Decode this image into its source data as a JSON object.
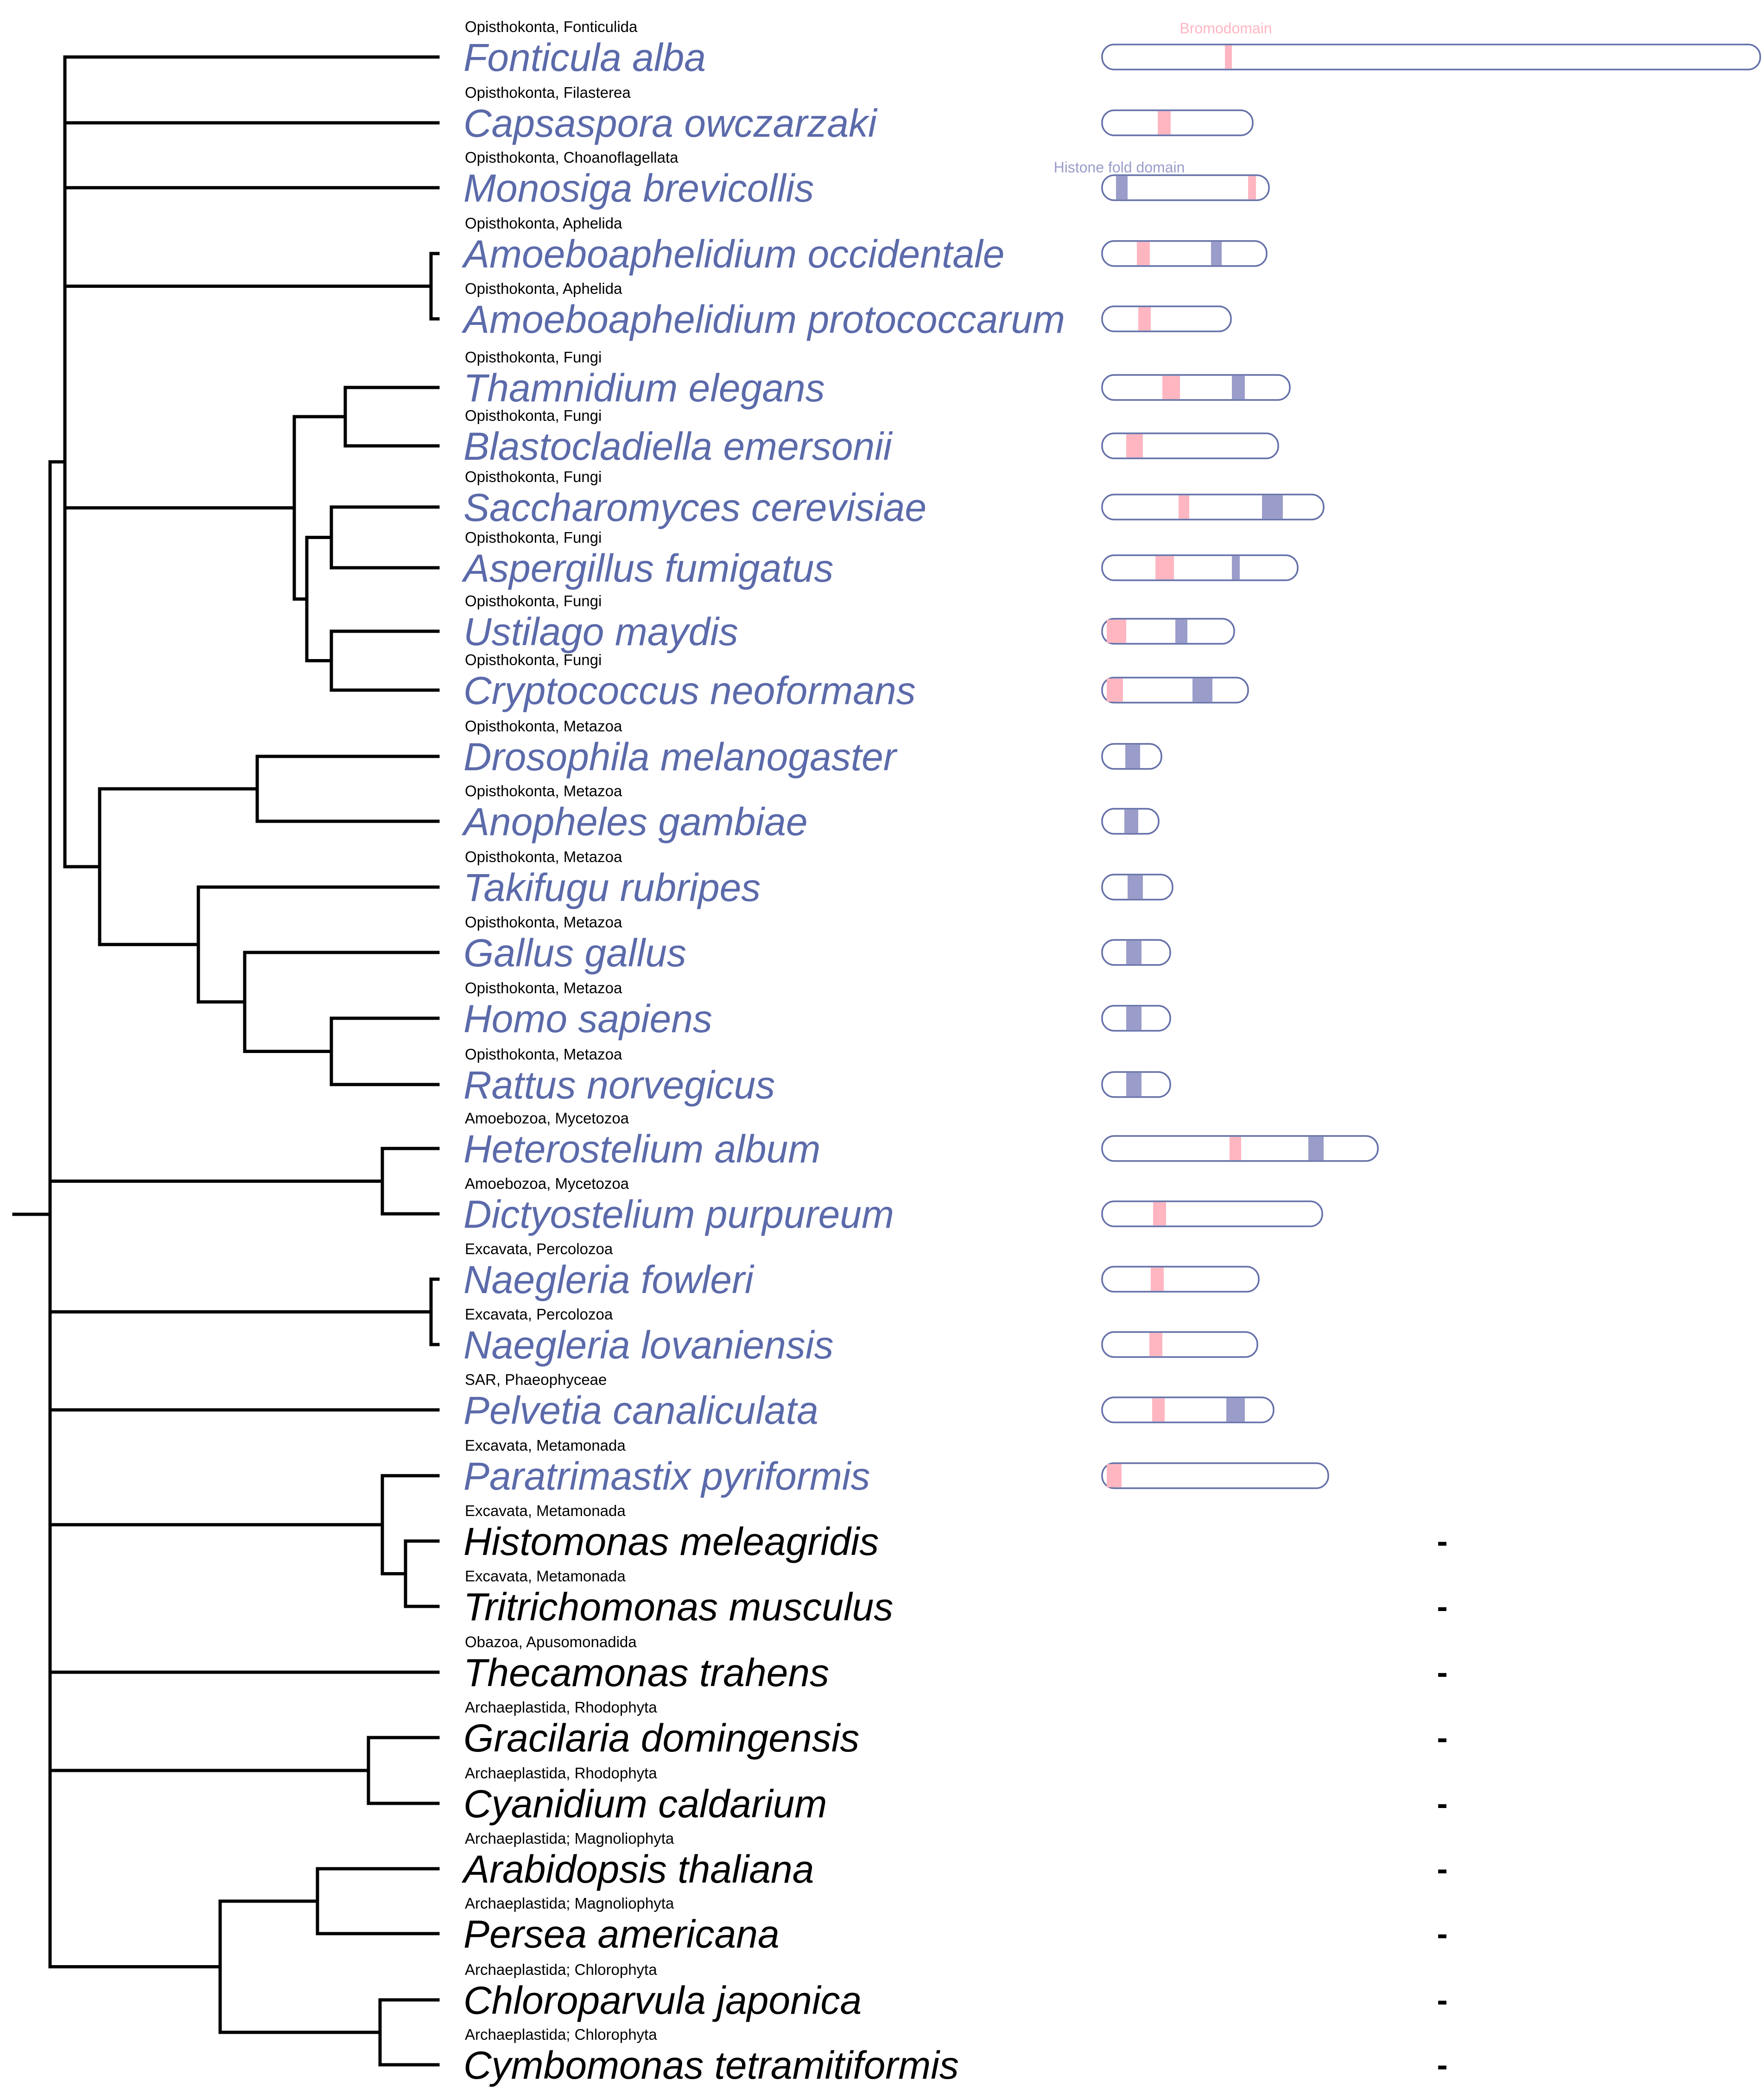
{
  "colors": {
    "has_protein": "#5b6aaa",
    "no_protein": "#000000",
    "bromodomain": "#ffb6c1",
    "histone_fold": "#9a9cc9",
    "protein_outline": "#6470a8"
  },
  "legend": {
    "bromodomain": "Bromodomain",
    "histone_fold": "Histone fold domain"
  },
  "no_hit_symbol": "-",
  "taxa": [
    {
      "name": "Fonticula alba",
      "group": "Opisthokonta, Fonticulida",
      "has_protein": true,
      "length": 1420,
      "domains": [
        {
          "type": "bromodomain",
          "start": 265,
          "end": 280
        }
      ]
    },
    {
      "name": "Capsaspora owczarzaki",
      "group": "Opisthokonta, Filasterea",
      "has_protein": true,
      "length": 325,
      "domains": [
        {
          "type": "bromodomain",
          "start": 120,
          "end": 148
        }
      ]
    },
    {
      "name": "Monosiga brevicollis",
      "group": "Opisthokonta, Choanoflagellata",
      "has_protein": true,
      "length": 360,
      "domains": [
        {
          "type": "histone_fold",
          "start": 30,
          "end": 55
        },
        {
          "type": "bromodomain",
          "start": 315,
          "end": 332
        }
      ]
    },
    {
      "name": "Amoeboaphelidium occidentale",
      "group": "Opisthokonta, Aphelida",
      "has_protein": true,
      "length": 355,
      "domains": [
        {
          "type": "bromodomain",
          "start": 75,
          "end": 103
        },
        {
          "type": "histone_fold",
          "start": 235,
          "end": 258
        }
      ]
    },
    {
      "name": "Amoeboaphelidium protococcarum",
      "group": "Opisthokonta, Aphelida",
      "has_protein": true,
      "length": 278,
      "domains": [
        {
          "type": "bromodomain",
          "start": 78,
          "end": 105
        }
      ]
    },
    {
      "name": "Thamnidium elegans",
      "group": "Opisthokonta, Fungi",
      "has_protein": true,
      "length": 405,
      "domains": [
        {
          "type": "bromodomain",
          "start": 130,
          "end": 168
        },
        {
          "type": "histone_fold",
          "start": 280,
          "end": 308
        }
      ]
    },
    {
      "name": "Blastocladiella emersonii",
      "group": "Opisthokonta, Fungi",
      "has_protein": true,
      "length": 380,
      "domains": [
        {
          "type": "bromodomain",
          "start": 52,
          "end": 88
        }
      ]
    },
    {
      "name": "Saccharomyces cerevisiae",
      "group": "Opisthokonta, Fungi",
      "has_protein": true,
      "length": 478,
      "domains": [
        {
          "type": "bromodomain",
          "start": 165,
          "end": 188
        },
        {
          "type": "histone_fold",
          "start": 345,
          "end": 390
        }
      ]
    },
    {
      "name": "Aspergillus fumigatus",
      "group": "Opisthokonta, Fungi",
      "has_protein": true,
      "length": 422,
      "domains": [
        {
          "type": "bromodomain",
          "start": 115,
          "end": 155
        },
        {
          "type": "histone_fold",
          "start": 280,
          "end": 297
        }
      ]
    },
    {
      "name": "Ustilago maydis",
      "group": "Opisthokonta, Fungi",
      "has_protein": true,
      "length": 285,
      "domains": [
        {
          "type": "bromodomain",
          "start": 10,
          "end": 52
        },
        {
          "type": "histone_fold",
          "start": 158,
          "end": 184
        }
      ]
    },
    {
      "name": "Cryptococcus neoformans",
      "group": "Opisthokonta, Fungi",
      "has_protein": true,
      "length": 315,
      "domains": [
        {
          "type": "bromodomain",
          "start": 10,
          "end": 45
        },
        {
          "type": "histone_fold",
          "start": 195,
          "end": 238
        }
      ]
    },
    {
      "name": "Drosophila melanogaster",
      "group": "Opisthokonta, Metazoa",
      "has_protein": true,
      "length": 128,
      "domains": [
        {
          "type": "histone_fold",
          "start": 50,
          "end": 82
        }
      ]
    },
    {
      "name": "Anopheles gambiae",
      "group": "Opisthokonta, Metazoa",
      "has_protein": true,
      "length": 122,
      "domains": [
        {
          "type": "histone_fold",
          "start": 48,
          "end": 78
        }
      ]
    },
    {
      "name": "Takifugu rubripes",
      "group": "Opisthokonta, Metazoa",
      "has_protein": true,
      "length": 152,
      "domains": [
        {
          "type": "histone_fold",
          "start": 55,
          "end": 88
        }
      ]
    },
    {
      "name": "Gallus gallus",
      "group": "Opisthokonta, Metazoa",
      "has_protein": true,
      "length": 147,
      "domains": [
        {
          "type": "histone_fold",
          "start": 52,
          "end": 85
        }
      ]
    },
    {
      "name": "Homo sapiens",
      "group": "Opisthokonta, Metazoa",
      "has_protein": true,
      "length": 147,
      "domains": [
        {
          "type": "histone_fold",
          "start": 52,
          "end": 85
        }
      ]
    },
    {
      "name": "Rattus norvegicus",
      "group": "Opisthokonta, Metazoa",
      "has_protein": true,
      "length": 147,
      "domains": [
        {
          "type": "histone_fold",
          "start": 52,
          "end": 85
        }
      ]
    },
    {
      "name": "Heterostelium album",
      "group": "Amoebozoa, Mycetozoa",
      "has_protein": true,
      "length": 595,
      "domains": [
        {
          "type": "bromodomain",
          "start": 275,
          "end": 300
        },
        {
          "type": "histone_fold",
          "start": 445,
          "end": 478
        }
      ]
    },
    {
      "name": "Dictyostelium purpureum",
      "group": "Amoebozoa, Mycetozoa",
      "has_protein": true,
      "length": 475,
      "domains": [
        {
          "type": "bromodomain",
          "start": 110,
          "end": 138
        }
      ]
    },
    {
      "name": "Naegleria fowleri",
      "group": "Excavata, Percolozoa",
      "has_protein": true,
      "length": 338,
      "domains": [
        {
          "type": "bromodomain",
          "start": 105,
          "end": 133
        }
      ]
    },
    {
      "name": "Naegleria lovaniensis",
      "group": "Excavata, Percolozoa",
      "has_protein": true,
      "length": 335,
      "domains": [
        {
          "type": "bromodomain",
          "start": 102,
          "end": 130
        }
      ]
    },
    {
      "name": "Pelvetia canaliculata",
      "group": "SAR, Phaeophyceae",
      "has_protein": true,
      "length": 370,
      "domains": [
        {
          "type": "bromodomain",
          "start": 108,
          "end": 135
        },
        {
          "type": "histone_fold",
          "start": 268,
          "end": 308
        }
      ]
    },
    {
      "name": "Paratrimastix pyriformis",
      "group": "Excavata, Metamonada",
      "has_protein": true,
      "length": 488,
      "domains": [
        {
          "type": "bromodomain",
          "start": 10,
          "end": 42
        }
      ]
    },
    {
      "name": "Histomonas meleagridis",
      "group": "Excavata, Metamonada",
      "has_protein": false
    },
    {
      "name": "Tritrichomonas musculus",
      "group": "Excavata, Metamonada",
      "has_protein": false
    },
    {
      "name": "Thecamonas trahens",
      "group": "Obazoa, Apusomonadida",
      "has_protein": false
    },
    {
      "name": "Gracilaria domingensis",
      "group": "Archaeplastida, Rhodophyta",
      "has_protein": false
    },
    {
      "name": "Cyanidium caldarium",
      "group": "Archaeplastida, Rhodophyta",
      "has_protein": false
    },
    {
      "name": "Arabidopsis thaliana",
      "group": "Archaeplastida; Magnoliophyta",
      "has_protein": false
    },
    {
      "name": "Persea americana",
      "group": "Archaeplastida; Magnoliophyta",
      "has_protein": false
    },
    {
      "name": "Chloroparvula japonica",
      "group": "Archaeplastida; Chlorophyta",
      "has_protein": false
    },
    {
      "name": "Cymbomonas tetramitiformis",
      "group": "Archaeplastida; Chlorophyta",
      "has_protein": false
    }
  ],
  "tree": {
    "children": [
      {
        "children": [
          {
            "leaf": 0
          },
          {
            "leaf": 1
          },
          {
            "leaf": 2
          },
          {
            "children": [
              {
                "leaf": 3
              },
              {
                "leaf": 4
              }
            ]
          },
          {
            "children": [
              {
                "children": [
                  {
                    "leaf": 5
                  },
                  {
                    "leaf": 6
                  }
                ]
              },
              {
                "children": [
                  {
                    "children": [
                      {
                        "leaf": 7
                      },
                      {
                        "leaf": 8
                      }
                    ]
                  },
                  {
                    "children": [
                      {
                        "leaf": 9
                      },
                      {
                        "leaf": 10
                      }
                    ]
                  }
                ]
              }
            ]
          },
          {
            "children": [
              {
                "children": [
                  {
                    "leaf": 11
                  },
                  {
                    "leaf": 12
                  }
                ]
              },
              {
                "children": [
                  {
                    "leaf": 13
                  },
                  {
                    "children": [
                      {
                        "leaf": 14
                      },
                      {
                        "children": [
                          {
                            "leaf": 15
                          },
                          {
                            "leaf": 16
                          }
                        ]
                      }
                    ]
                  }
                ]
              }
            ]
          }
        ]
      },
      {
        "children": [
          {
            "leaf": 17
          },
          {
            "leaf": 18
          }
        ]
      },
      {
        "children": [
          {
            "leaf": 19
          },
          {
            "leaf": 20
          }
        ]
      },
      {
        "leaf": 21
      },
      {
        "children": [
          {
            "leaf": 22
          },
          {
            "children": [
              {
                "leaf": 23
              },
              {
                "leaf": 24
              }
            ]
          }
        ]
      },
      {
        "leaf": 25
      },
      {
        "children": [
          {
            "leaf": 26
          },
          {
            "leaf": 27
          }
        ]
      },
      {
        "children": [
          {
            "children": [
              {
                "leaf": 28
              },
              {
                "leaf": 29
              }
            ]
          },
          {
            "children": [
              {
                "leaf": 30
              },
              {
                "leaf": 31
              }
            ]
          }
        ]
      }
    ]
  }
}
